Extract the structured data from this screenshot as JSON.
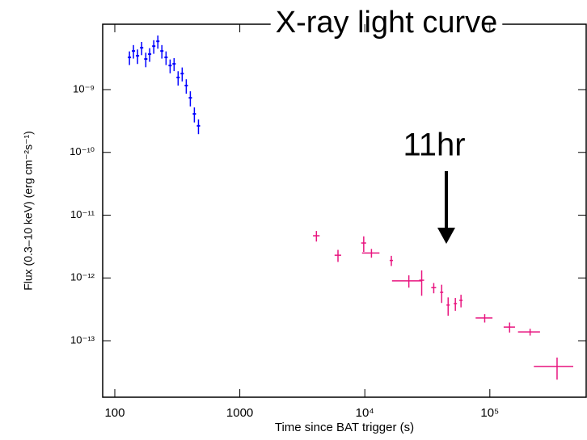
{
  "chart_data": {
    "type": "scatter",
    "title": "X-ray light curve",
    "x_label": "Time since BAT trigger (s)",
    "y_label": "Flux (0.3–10 keV) (erg cm⁻²s⁻¹)",
    "annotation": "11hr",
    "log_x": true,
    "log_y": true,
    "xlim": [
      80,
      590000
    ],
    "ylim": [
      1.26e-14,
      1.1e-08
    ],
    "xticks": [
      100,
      1000,
      {
        "value": 10000,
        "label": "10⁴"
      },
      {
        "value": 100000,
        "label": "10⁵"
      }
    ],
    "yticks": [
      {
        "value": 1e-09,
        "label": "10⁻⁹"
      },
      {
        "value": 1e-10,
        "label": "10⁻¹⁰"
      },
      {
        "value": 1e-11,
        "label": "10⁻¹¹"
      },
      {
        "value": 1e-12,
        "label": "10⁻¹²"
      },
      {
        "value": 1e-13,
        "label": "10⁻¹³"
      }
    ],
    "series": [
      {
        "color": "#0000ff",
        "x": [
          131,
          141,
          152,
          164,
          177,
          190,
          205,
          221,
          238,
          257,
          277,
          298,
          321,
          346,
          373,
          402,
          433,
          467
        ],
        "values": [
          3.26e-09,
          4.12e-09,
          3.46e-09,
          4.64e-09,
          3.07e-09,
          3.67e-09,
          4.92e-09,
          5.88e-09,
          4.12e-09,
          3.26e-09,
          2.42e-09,
          2.57e-09,
          1.56e-09,
          1.8e-09,
          1.16e-09,
          7.4e-10,
          4.1e-10,
          2.65e-10
        ],
        "y_err": [
          8e-10,
          1e-09,
          9e-10,
          1.1e-09,
          8e-10,
          9e-10,
          1.2e-09,
          1.4e-09,
          1e-09,
          8e-10,
          6e-10,
          6e-10,
          4e-10,
          4.5e-10,
          3e-10,
          2e-10,
          1.1e-10,
          7e-11
        ]
      },
      {
        "color": "#e8157f",
        "x": [
          4100,
          6100,
          9800,
          11300,
          16300,
          22500,
          28500,
          35600,
          41200,
          46400,
          53000,
          58800,
          91000,
          144000,
          210000,
          345000
        ],
        "x_err": [
          250,
          370,
          450,
          1800,
          500,
          6000,
          1300,
          1600,
          1200,
          1400,
          1600,
          1800,
          14000,
          15000,
          42000,
          120000
        ],
        "values": [
          4.7e-12,
          2.3e-12,
          3.6e-12,
          2.5e-12,
          1.9e-12,
          9e-13,
          9.2e-13,
          7e-13,
          5.9e-13,
          3.7e-13,
          3.9e-13,
          4.4e-13,
          2.3e-13,
          1.65e-13,
          1.38e-13,
          3.9e-14
        ],
        "y_err": [
          9e-13,
          5e-13,
          1e-12,
          4e-13,
          3.5e-13,
          2e-13,
          4e-13,
          1.3e-13,
          1.9e-13,
          1.2e-13,
          9e-14,
          1e-13,
          3.5e-14,
          3e-14,
          1.7e-14,
          1.5e-14
        ]
      }
    ]
  }
}
